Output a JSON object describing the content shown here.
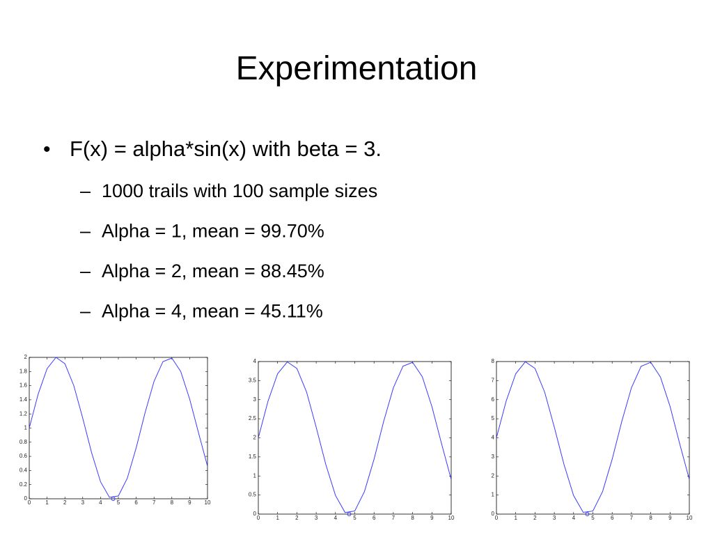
{
  "header": {
    "title": "Experimentation"
  },
  "bullet": "F(x) = alpha*sin(x) with beta = 3.",
  "sub_bullets": [
    "1000 trails with 100 sample sizes",
    "Alpha = 1, mean = 99.70%",
    "Alpha = 2, mean = 88.45%",
    "Alpha = 4, mean = 45.11%"
  ],
  "chart_data": [
    {
      "type": "line",
      "x": [
        0,
        0.5,
        1,
        1.5,
        2,
        2.5,
        3,
        3.5,
        4,
        4.5,
        5,
        5.5,
        6,
        6.5,
        7,
        7.5,
        8,
        8.5,
        9,
        9.5,
        10
      ],
      "series": [
        {
          "color": "#3a3aff",
          "values": [
            1,
            1.48,
            1.84,
            2.0,
            1.91,
            1.6,
            1.14,
            0.65,
            0.24,
            0.02,
            0.04,
            0.29,
            0.72,
            1.22,
            1.66,
            1.94,
            1.99,
            1.8,
            1.41,
            0.93,
            0.46
          ]
        },
        {
          "color": "#3a3aff",
          "marker": "circle",
          "x": [
            4.71
          ],
          "values": [
            0
          ]
        }
      ],
      "xlim": [
        0,
        10
      ],
      "ylim": [
        0,
        2
      ],
      "xticks": [
        0,
        1,
        2,
        3,
        4,
        5,
        6,
        7,
        8,
        9,
        10
      ],
      "yticks": [
        0,
        0.2,
        0.4,
        0.6,
        0.8,
        1,
        1.2,
        1.4,
        1.6,
        1.8,
        2
      ]
    },
    {
      "type": "line",
      "x": [
        0,
        0.5,
        1,
        1.5,
        2,
        2.5,
        3,
        3.5,
        4,
        4.5,
        5,
        5.5,
        6,
        6.5,
        7,
        7.5,
        8,
        8.5,
        9,
        9.5,
        10
      ],
      "series": [
        {
          "color": "#3a3aff",
          "values": [
            2,
            2.96,
            3.68,
            3.99,
            3.82,
            3.2,
            2.28,
            1.3,
            0.49,
            0.04,
            0.08,
            0.59,
            1.44,
            2.43,
            3.31,
            3.88,
            3.98,
            3.6,
            2.82,
            1.85,
            0.91
          ]
        },
        {
          "color": "#3a3aff",
          "marker": "circle",
          "x": [
            4.71
          ],
          "values": [
            0
          ]
        }
      ],
      "xlim": [
        0,
        10
      ],
      "ylim": [
        0,
        4
      ],
      "xticks": [
        0,
        1,
        2,
        3,
        4,
        5,
        6,
        7,
        8,
        9,
        10
      ],
      "yticks": [
        0,
        0.5,
        1,
        1.5,
        2,
        2.5,
        3,
        3.5,
        4
      ]
    },
    {
      "type": "line",
      "x": [
        0,
        0.5,
        1,
        1.5,
        2,
        2.5,
        3,
        3.5,
        4,
        4.5,
        5,
        5.5,
        6,
        6.5,
        7,
        7.5,
        8,
        8.5,
        9,
        9.5,
        10
      ],
      "series": [
        {
          "color": "#3a3aff",
          "values": [
            4,
            5.92,
            7.36,
            7.99,
            7.64,
            6.39,
            4.56,
            2.6,
            0.97,
            0.09,
            0.16,
            1.18,
            2.88,
            4.86,
            6.63,
            7.75,
            7.96,
            7.19,
            5.65,
            3.7,
            1.82
          ]
        },
        {
          "color": "#3a3aff",
          "marker": "circle",
          "x": [
            4.71
          ],
          "values": [
            0
          ]
        }
      ],
      "xlim": [
        0,
        10
      ],
      "ylim": [
        0,
        8
      ],
      "xticks": [
        0,
        1,
        2,
        3,
        4,
        5,
        6,
        7,
        8,
        9,
        10
      ],
      "yticks": [
        0,
        1,
        2,
        3,
        4,
        5,
        6,
        7,
        8
      ]
    }
  ]
}
